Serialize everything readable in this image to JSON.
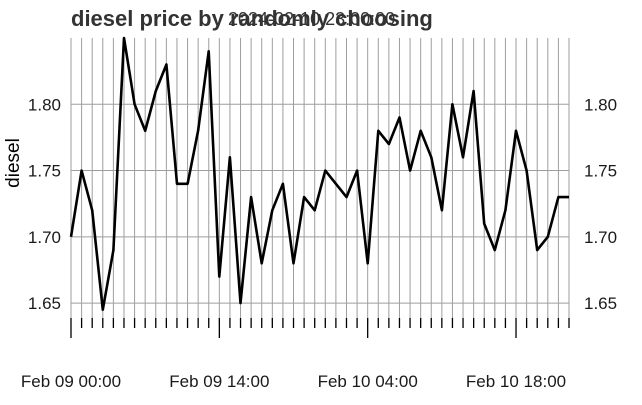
{
  "chart_data": {
    "type": "line",
    "title": "diesel price by randomly choosing",
    "subtitle": "2024-02-10 23:00:00",
    "xlabel": "",
    "ylabel": "diesel",
    "x_tick_labels": [
      "Feb 09 00:00",
      "Feb 09 14:00",
      "Feb 10 04:00",
      "Feb 10 18:00"
    ],
    "x_tick_hours": [
      0,
      14,
      28,
      42
    ],
    "xlim_hours": [
      0,
      47
    ],
    "y_ticks": [
      1.65,
      1.7,
      1.75,
      1.8
    ],
    "y_tick_labels": [
      "1.65",
      "1.70",
      "1.75",
      "1.80"
    ],
    "ylim": [
      1.635,
      1.85
    ],
    "grid": true,
    "series": [
      {
        "x_hours": [
          0,
          1,
          2,
          3,
          4,
          5,
          6,
          7,
          8,
          9,
          10,
          11,
          12,
          13,
          14,
          15,
          16,
          17,
          18,
          19,
          20,
          21,
          22,
          23,
          24,
          25,
          26,
          27,
          28,
          29,
          30,
          31,
          32,
          33,
          34,
          35,
          36,
          37,
          38,
          39,
          40,
          41,
          42,
          43,
          44,
          45,
          46,
          47
        ],
        "values": [
          1.7,
          1.75,
          1.72,
          1.645,
          1.69,
          1.85,
          1.8,
          1.78,
          1.81,
          1.83,
          1.74,
          1.74,
          1.78,
          1.84,
          1.67,
          1.76,
          1.65,
          1.73,
          1.68,
          1.72,
          1.74,
          1.68,
          1.73,
          1.72,
          1.75,
          1.74,
          1.73,
          1.75,
          1.68,
          1.78,
          1.77,
          1.79,
          1.75,
          1.78,
          1.76,
          1.72,
          1.8,
          1.76,
          1.81,
          1.71,
          1.69,
          1.72,
          1.78,
          1.75,
          1.69,
          1.7,
          1.73,
          1.73
        ]
      }
    ]
  }
}
